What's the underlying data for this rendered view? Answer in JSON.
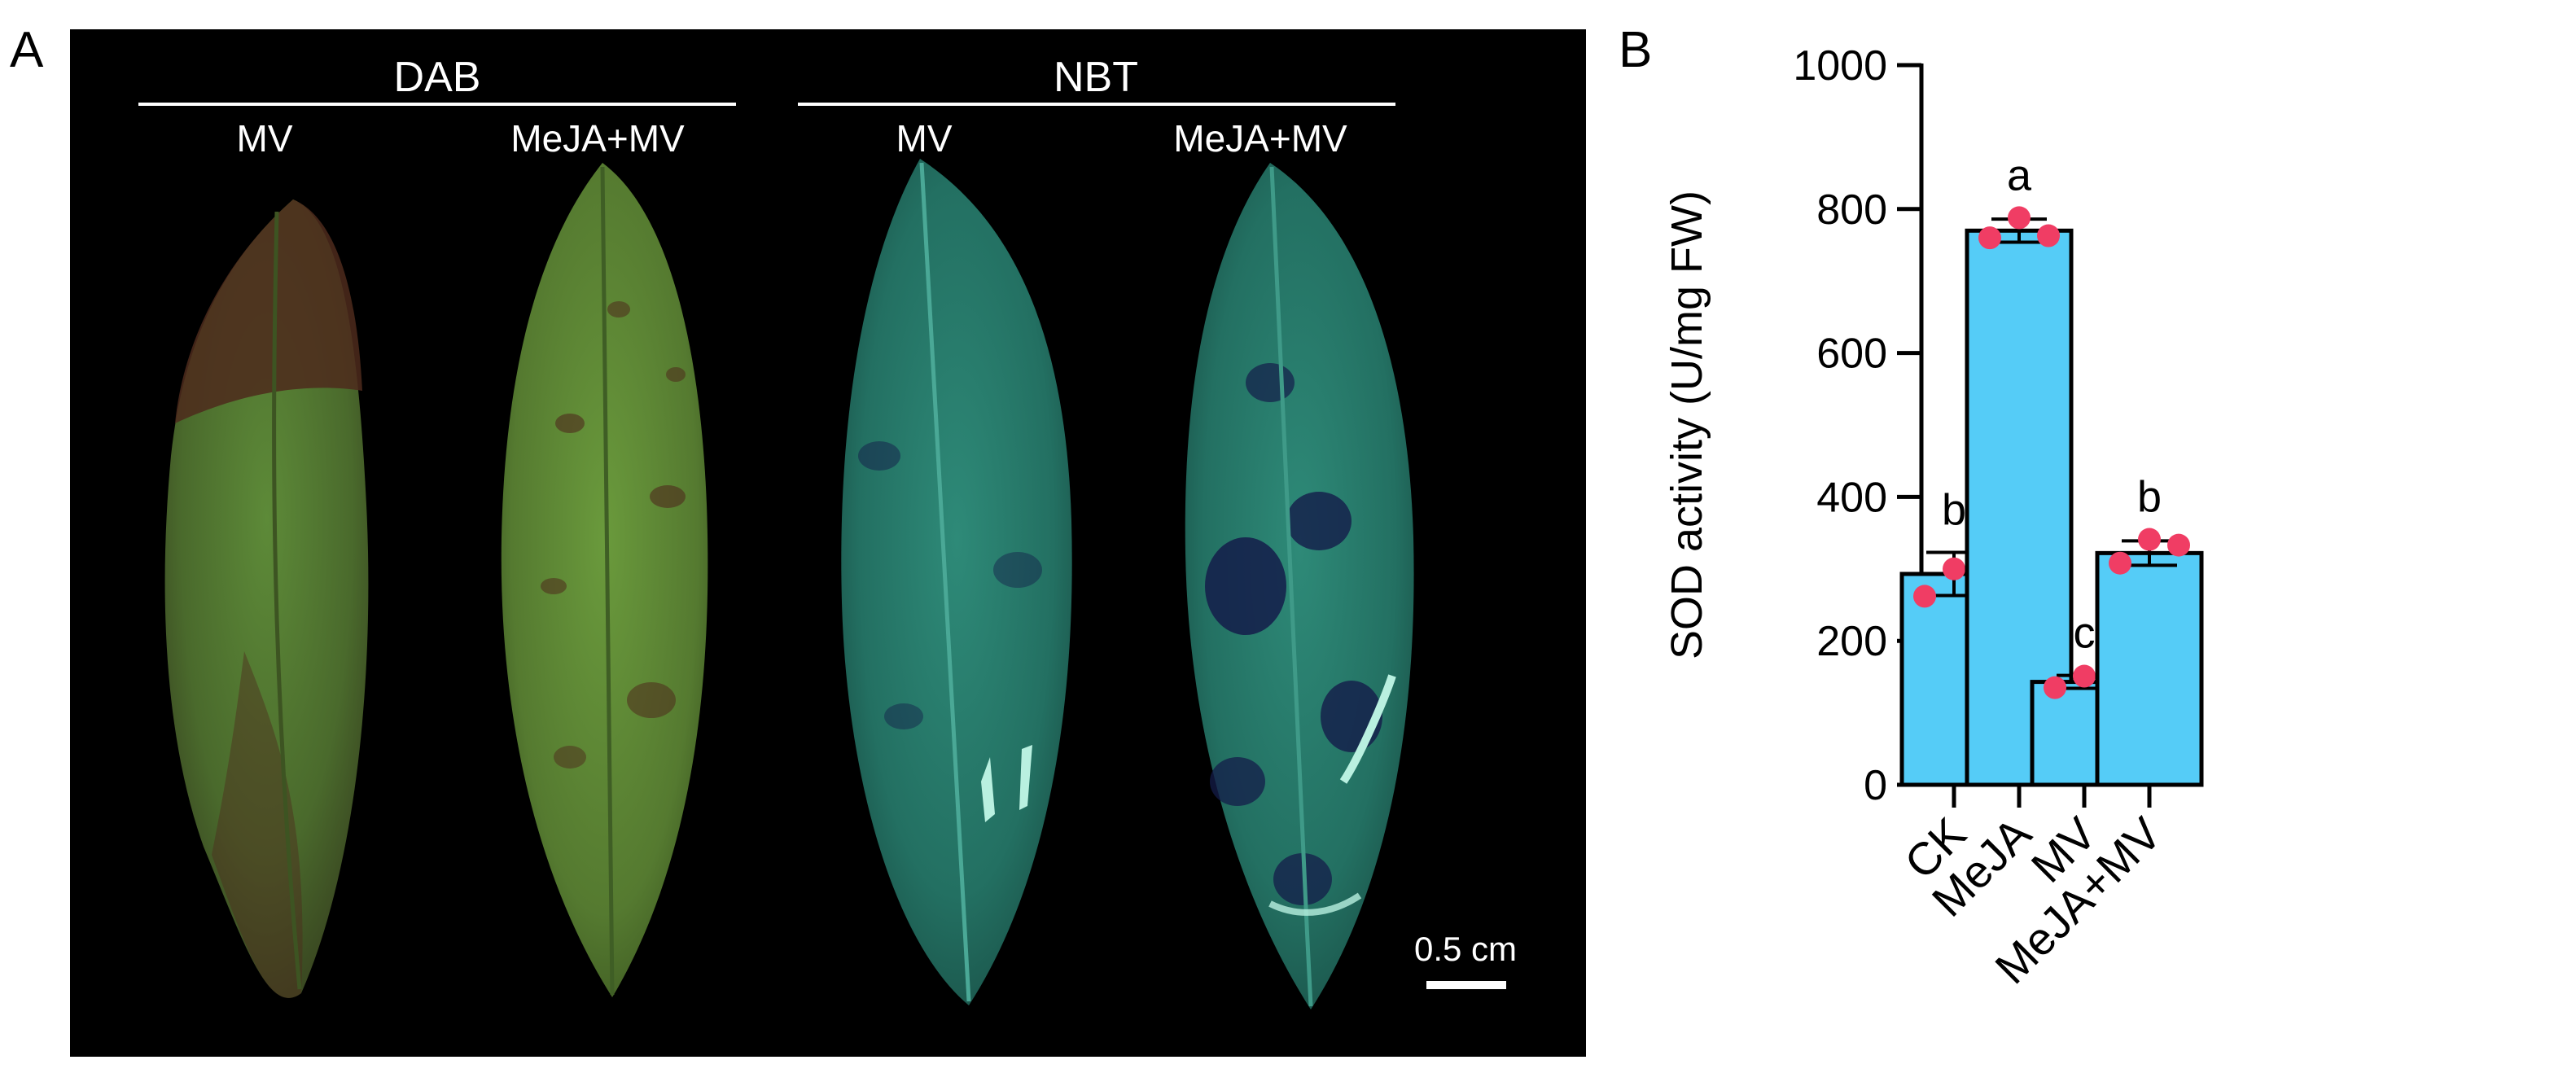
{
  "panel_a": {
    "label": "A",
    "groups": [
      {
        "title": "DAB",
        "columns": [
          "MV",
          "MeJA+MV"
        ]
      },
      {
        "title": "NBT",
        "columns": [
          "MV",
          "MeJA+MV"
        ]
      }
    ],
    "scale_bar_label": "0.5 cm",
    "colors": {
      "background": "#000000",
      "dab_leaf": "#4a6a2c",
      "dab_stain": "#4e2a1c",
      "nbt_leaf": "#2a7a6a",
      "nbt_stain": "#141c4a"
    }
  },
  "panel_b": {
    "label": "B"
  },
  "chart_data": {
    "type": "bar",
    "categories": [
      "CK",
      "MeJA",
      "MV",
      "MeJA+MV"
    ],
    "values": [
      293,
      770,
      143,
      322
    ],
    "errors": [
      30,
      16,
      9,
      17
    ],
    "points": [
      [
        262,
        300,
        320
      ],
      [
        760,
        788,
        763
      ],
      [
        135,
        151,
        147
      ],
      [
        308,
        341,
        333
      ]
    ],
    "significance": [
      "b",
      "a",
      "c",
      "b"
    ],
    "xlabel": "",
    "ylabel": "SOD activity (U/mg FW)",
    "ylim": [
      0,
      1000
    ],
    "yticks": [
      0,
      200,
      400,
      600,
      800,
      1000
    ],
    "bar_color": "#55ccf7",
    "point_color": "#f03d64",
    "grid": false
  }
}
